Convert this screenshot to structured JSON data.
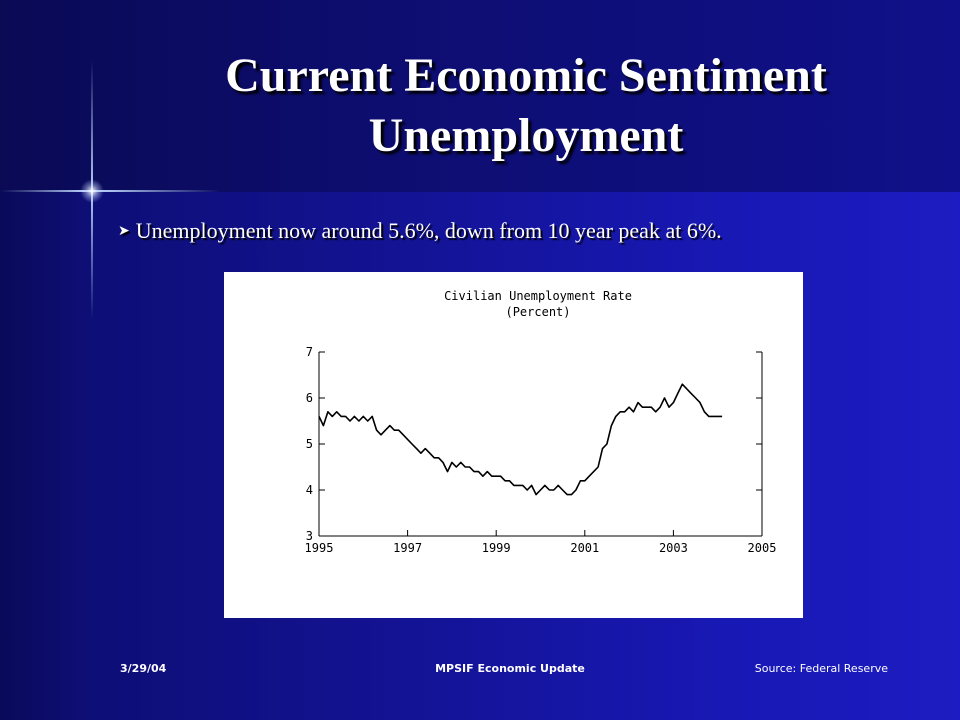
{
  "slide": {
    "title_line1": "Current Economic Sentiment",
    "title_line2": "Unemployment",
    "bullet_text": "Unemployment now around 5.6%, down from 10 year peak at 6%.",
    "bullet_icon": "arrow-bullet-icon"
  },
  "footer": {
    "date": "3/29/04",
    "center": "MPSIF Economic Update",
    "source": "Source: Federal Reserve"
  },
  "chart_data": {
    "type": "line",
    "title": "Civilian Unemployment Rate",
    "subtitle": "(Percent)",
    "xlabel": "",
    "ylabel": "",
    "xlim": [
      1995,
      2005
    ],
    "ylim": [
      3,
      7
    ],
    "x_ticks": [
      "1995",
      "1997",
      "1999",
      "2001",
      "2003",
      "2005"
    ],
    "y_ticks": [
      "3",
      "4",
      "5",
      "6",
      "7"
    ],
    "grid": false,
    "x": [
      1995.0,
      1995.1,
      1995.2,
      1995.3,
      1995.4,
      1995.5,
      1995.6,
      1995.7,
      1995.8,
      1995.9,
      1996.0,
      1996.1,
      1996.2,
      1996.3,
      1996.4,
      1996.5,
      1996.6,
      1996.7,
      1996.8,
      1996.9,
      1997.0,
      1997.1,
      1997.2,
      1997.3,
      1997.4,
      1997.5,
      1997.6,
      1997.7,
      1997.8,
      1997.9,
      1998.0,
      1998.1,
      1998.2,
      1998.3,
      1998.4,
      1998.5,
      1998.6,
      1998.7,
      1998.8,
      1998.9,
      1999.0,
      1999.1,
      1999.2,
      1999.3,
      1999.4,
      1999.5,
      1999.6,
      1999.7,
      1999.8,
      1999.9,
      2000.0,
      2000.1,
      2000.2,
      2000.3,
      2000.4,
      2000.5,
      2000.6,
      2000.7,
      2000.8,
      2000.9,
      2001.0,
      2001.1,
      2001.2,
      2001.3,
      2001.4,
      2001.5,
      2001.6,
      2001.7,
      2001.8,
      2001.9,
      2002.0,
      2002.1,
      2002.2,
      2002.3,
      2002.4,
      2002.5,
      2002.6,
      2002.7,
      2002.8,
      2002.9,
      2003.0,
      2003.1,
      2003.2,
      2003.3,
      2003.4,
      2003.5,
      2003.6,
      2003.7,
      2003.8,
      2003.9,
      2004.0,
      2004.1
    ],
    "series": [
      {
        "values": [
          5.6,
          5.4,
          5.7,
          5.6,
          5.7,
          5.6,
          5.6,
          5.5,
          5.6,
          5.5,
          5.6,
          5.5,
          5.6,
          5.3,
          5.2,
          5.3,
          5.4,
          5.3,
          5.3,
          5.2,
          5.1,
          5.0,
          4.9,
          4.8,
          4.9,
          4.8,
          4.7,
          4.7,
          4.6,
          4.4,
          4.6,
          4.5,
          4.6,
          4.5,
          4.5,
          4.4,
          4.4,
          4.3,
          4.4,
          4.3,
          4.3,
          4.3,
          4.2,
          4.2,
          4.1,
          4.1,
          4.1,
          4.0,
          4.1,
          3.9,
          4.0,
          4.1,
          4.0,
          4.0,
          4.1,
          4.0,
          3.9,
          3.9,
          4.0,
          4.2,
          4.2,
          4.3,
          4.4,
          4.5,
          4.9,
          5.0,
          5.4,
          5.6,
          5.7,
          5.7,
          5.8,
          5.7,
          5.9,
          5.8,
          5.8,
          5.8,
          5.7,
          5.8,
          6.0,
          5.8,
          5.9,
          6.1,
          6.3,
          6.2,
          6.1,
          6.0,
          5.9,
          5.7,
          5.6,
          5.6,
          5.6,
          5.6
        ]
      }
    ]
  }
}
